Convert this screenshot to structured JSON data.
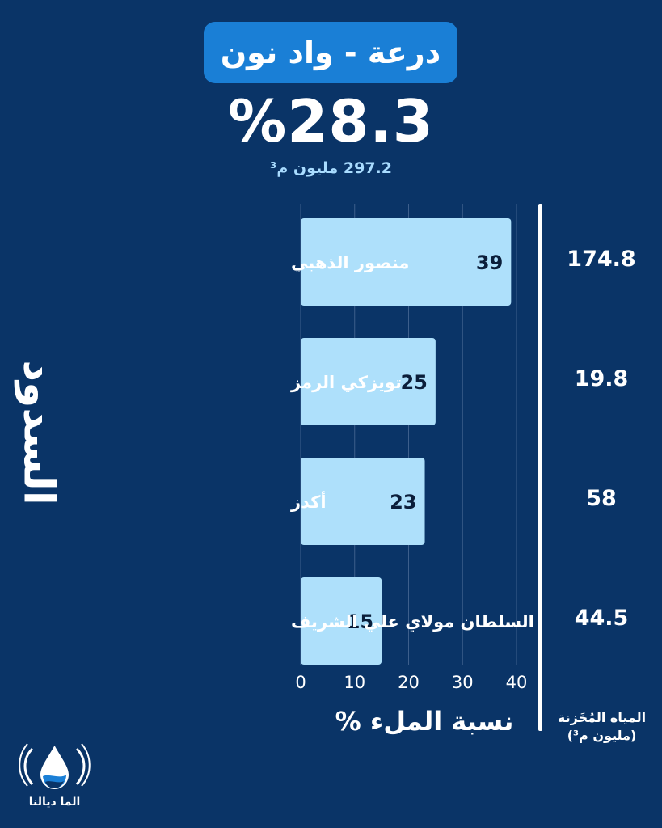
{
  "header": {
    "title": "درعة - واد نون",
    "percent": "%28.3",
    "subtitle": "297.2 مليون م³"
  },
  "left_title": "السدود",
  "stored_label_line1": "المياه المُخَزنة",
  "stored_label_line2": "(مليون م³)",
  "logo_text": "الما ديالنا",
  "colors": {
    "background": "#0a3467",
    "title_pill": "#1a7fd6",
    "bar": "#aee0fb",
    "subtitle": "#a9dcff"
  },
  "chart_data": {
    "type": "bar",
    "orientation": "horizontal",
    "categories": [
      "منصور الذهبي",
      "تويزكي الرمز",
      "أكدز",
      "السلطان مولاي علي الشريف"
    ],
    "values": [
      39,
      25,
      23,
      15
    ],
    "stored_million_m3": [
      "174.8",
      "19.8",
      "58",
      "44.5"
    ],
    "xlabel": "نسبة الملء %",
    "xlim": [
      0,
      40
    ],
    "xticks": [
      0,
      10,
      20,
      30,
      40
    ],
    "grid": true
  }
}
